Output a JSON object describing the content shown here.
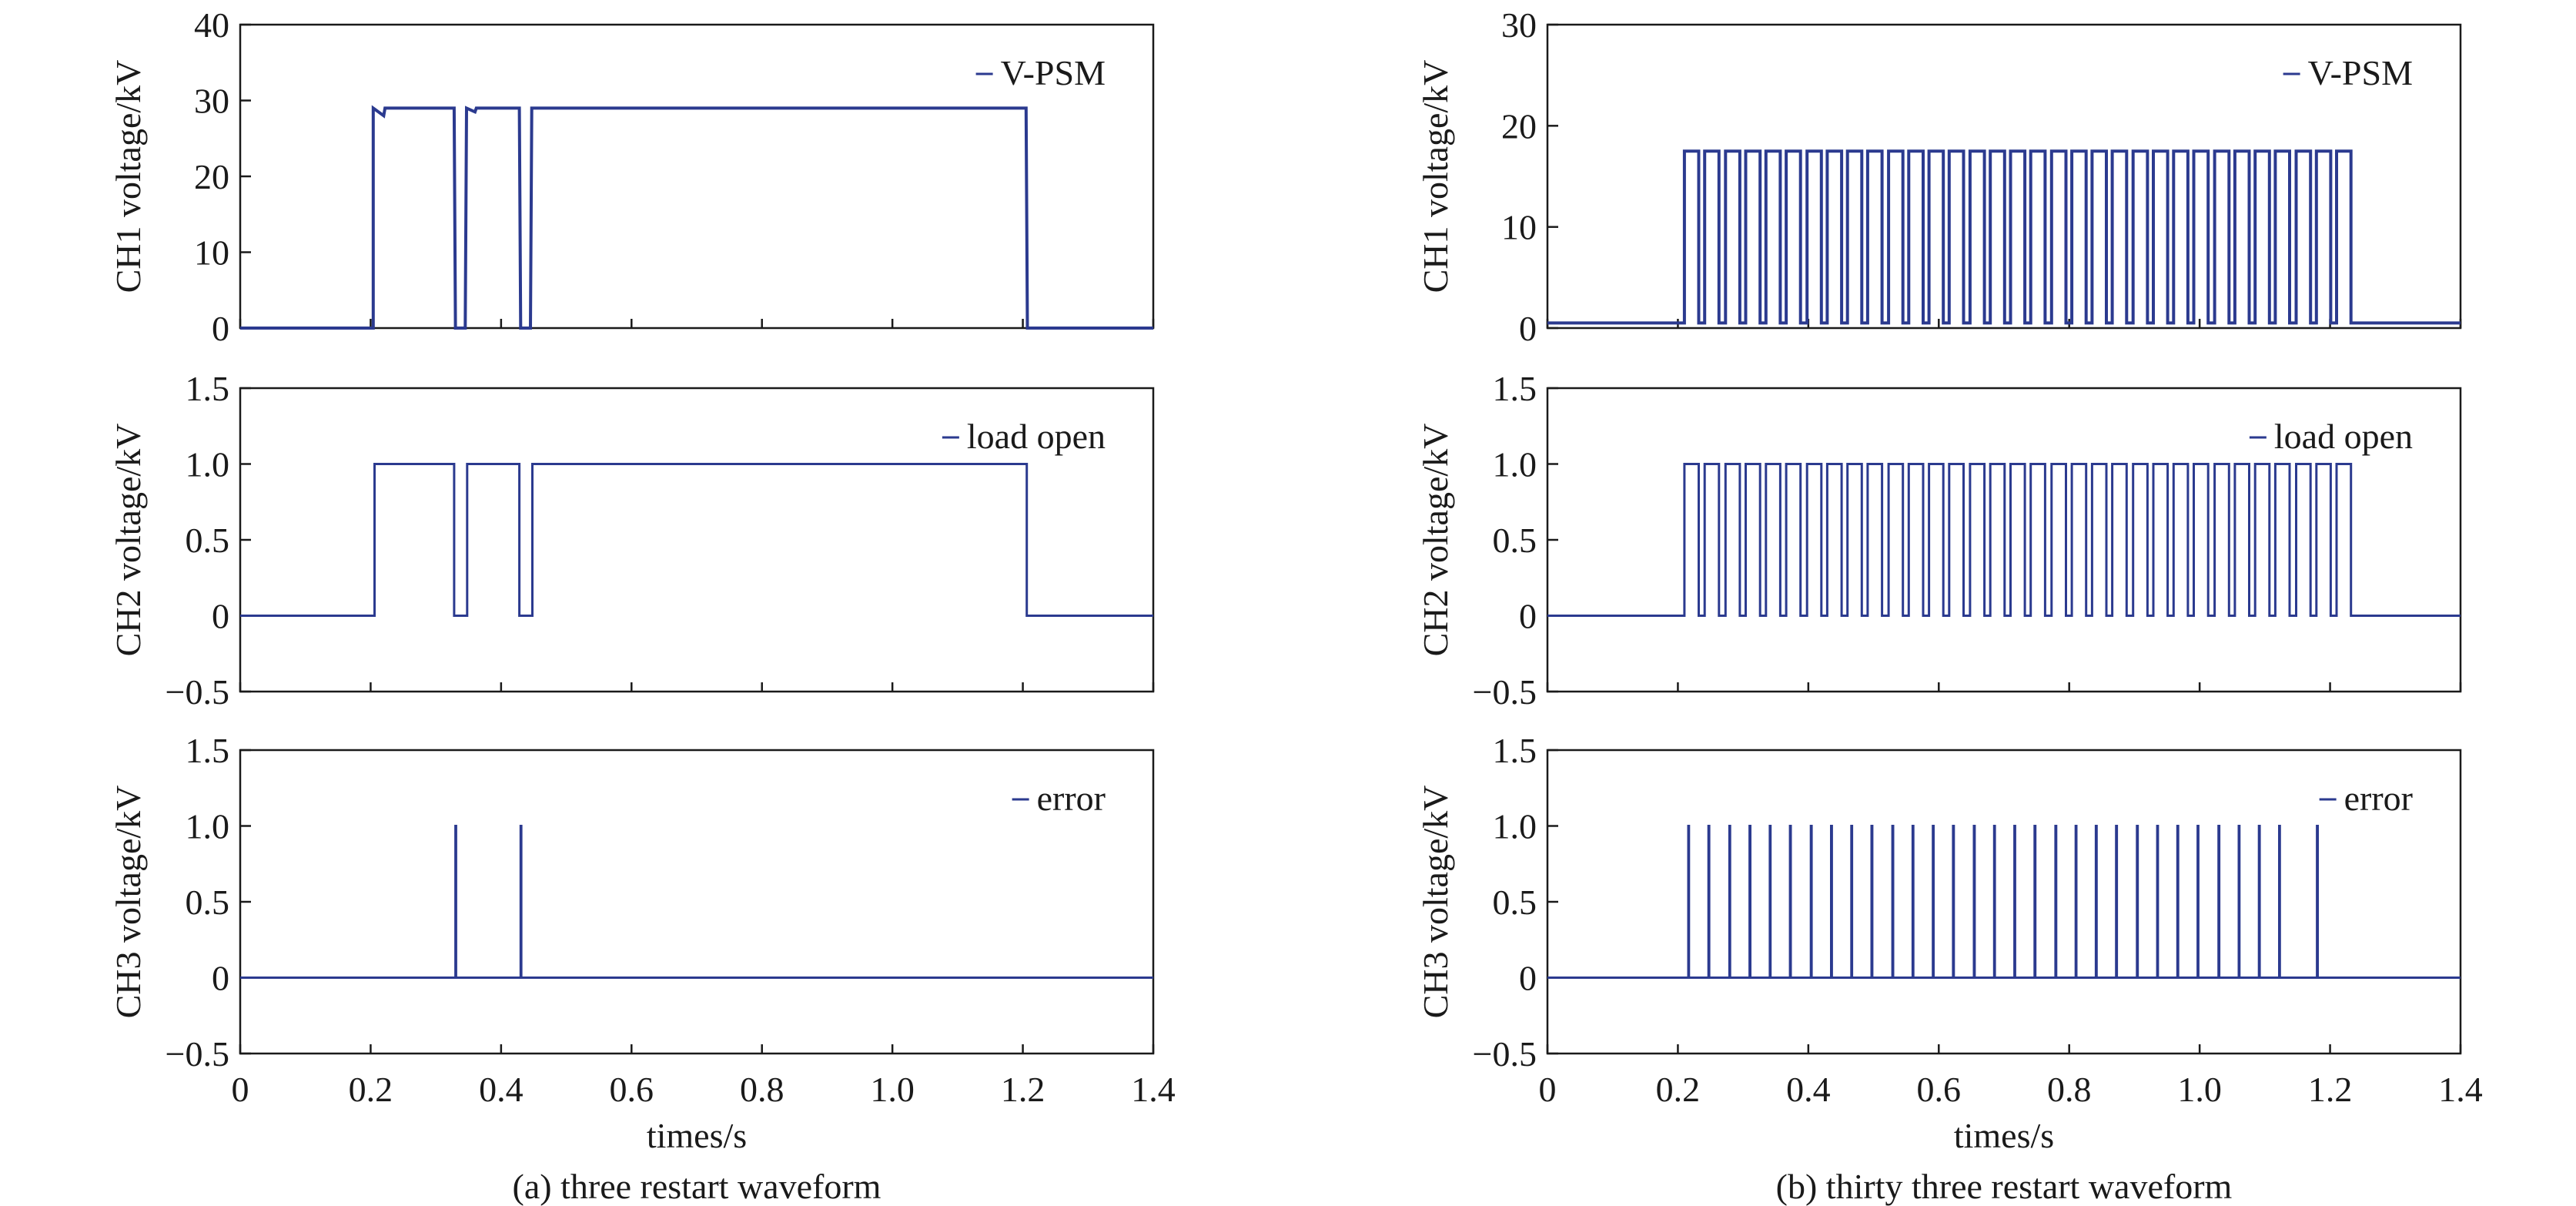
{
  "colors": {
    "trace": "#2b3a8f",
    "axis": "#1a1a1a"
  },
  "x_axis": {
    "label": "times/s",
    "ticks": [
      "0",
      "0.2",
      "0.4",
      "0.6",
      "0.8",
      "1.0",
      "1.2",
      "1.4"
    ]
  },
  "chart_data": [
    {
      "type": "line",
      "caption": "(a) three restart waveform",
      "xlim": [
        0,
        1.4
      ],
      "panels": [
        {
          "ylabel": "CH1 voltage/kV",
          "ylim": [
            0,
            40
          ],
          "yticks": [
            "0",
            "10",
            "20",
            "30",
            "40"
          ],
          "series": [
            {
              "name": "V-PSM",
              "x": [
                0,
                0.204,
                0.204,
                0.22,
                0.222,
                0.26,
                0.262,
                0.328,
                0.33,
                0.345,
                0.347,
                0.36,
                0.362,
                0.428,
                0.43,
                0.445,
                0.447,
                1.205,
                1.207,
                1.4
              ],
              "y": [
                0,
                0,
                29,
                28,
                29,
                29,
                29,
                29,
                0,
                0,
                29,
                28.5,
                29,
                29,
                0,
                0,
                29,
                29,
                0,
                0
              ]
            }
          ]
        },
        {
          "ylabel": "CH2 voltage/kV",
          "ylim": [
            -0.5,
            1.5
          ],
          "yticks": [
            "−0.5",
            "0",
            "0.5",
            "1.0",
            "1.5"
          ],
          "series": [
            {
              "name": "load open",
              "x": [
                0,
                0.206,
                0.206,
                0.328,
                0.328,
                0.348,
                0.348,
                0.428,
                0.428,
                0.448,
                0.448,
                1.206,
                1.206,
                1.4
              ],
              "y": [
                0,
                0,
                1,
                1,
                0,
                0,
                1,
                1,
                0,
                0,
                1,
                1,
                0,
                0
              ]
            }
          ]
        },
        {
          "ylabel": "CH3 voltage/kV",
          "ylim": [
            -0.5,
            1.5
          ],
          "yticks": [
            "−0.5",
            "0",
            "0.5",
            "1.0",
            "1.5"
          ],
          "series": [
            {
              "name": "error",
              "pulses": [
                0.33,
                0.43
              ],
              "pulse_height": 1.0
            }
          ]
        }
      ]
    },
    {
      "type": "line",
      "caption": "(b) thirty three restart waveform",
      "xlim": [
        0,
        1.4
      ],
      "panels": [
        {
          "ylabel": "CH1 voltage/kV",
          "ylim": [
            0,
            30
          ],
          "yticks": [
            "0",
            "10",
            "20",
            "30"
          ],
          "series": [
            {
              "name": "V-PSM",
              "baseline": 0.5,
              "level": 17.5,
              "restarts": [
                0.21,
                0.241,
                0.273,
                0.304,
                0.335,
                0.366,
                0.398,
                0.429,
                0.46,
                0.491,
                0.523,
                0.554,
                0.585,
                0.616,
                0.648,
                0.679,
                0.71,
                0.741,
                0.773,
                0.804,
                0.835,
                0.866,
                0.898,
                0.929,
                0.96,
                0.991,
                1.023,
                1.054,
                1.085,
                1.116,
                1.148,
                1.179,
                1.21
              ],
              "high_duration": 0.022
            }
          ]
        },
        {
          "ylabel": "CH2 voltage/kV",
          "ylim": [
            -0.5,
            1.5
          ],
          "yticks": [
            "−0.5",
            "0",
            "0.5",
            "1.0",
            "1.5"
          ],
          "series": [
            {
              "name": "load open",
              "level": 1.0,
              "restarts": [
                0.21,
                0.241,
                0.273,
                0.304,
                0.335,
                0.366,
                0.398,
                0.429,
                0.46,
                0.491,
                0.523,
                0.554,
                0.585,
                0.616,
                0.648,
                0.679,
                0.71,
                0.741,
                0.773,
                0.804,
                0.835,
                0.866,
                0.898,
                0.929,
                0.96,
                0.991,
                1.023,
                1.054,
                1.085,
                1.116,
                1.148,
                1.179,
                1.21
              ],
              "high_duration": 0.022
            }
          ]
        },
        {
          "ylabel": "CH3 voltage/kV",
          "ylim": [
            -0.5,
            1.5
          ],
          "yticks": [
            "−0.5",
            "0",
            "0.5",
            "1.0",
            "1.5"
          ],
          "series": [
            {
              "name": "error",
              "pulses": [
                0.216,
                0.247,
                0.279,
                0.31,
                0.341,
                0.372,
                0.404,
                0.435,
                0.466,
                0.497,
                0.529,
                0.56,
                0.591,
                0.622,
                0.654,
                0.685,
                0.716,
                0.747,
                0.779,
                0.81,
                0.841,
                0.872,
                0.904,
                0.935,
                0.966,
                0.997,
                1.029,
                1.06,
                1.091,
                1.122,
                1.18
              ],
              "pulse_height": 1.0
            }
          ]
        }
      ]
    }
  ]
}
